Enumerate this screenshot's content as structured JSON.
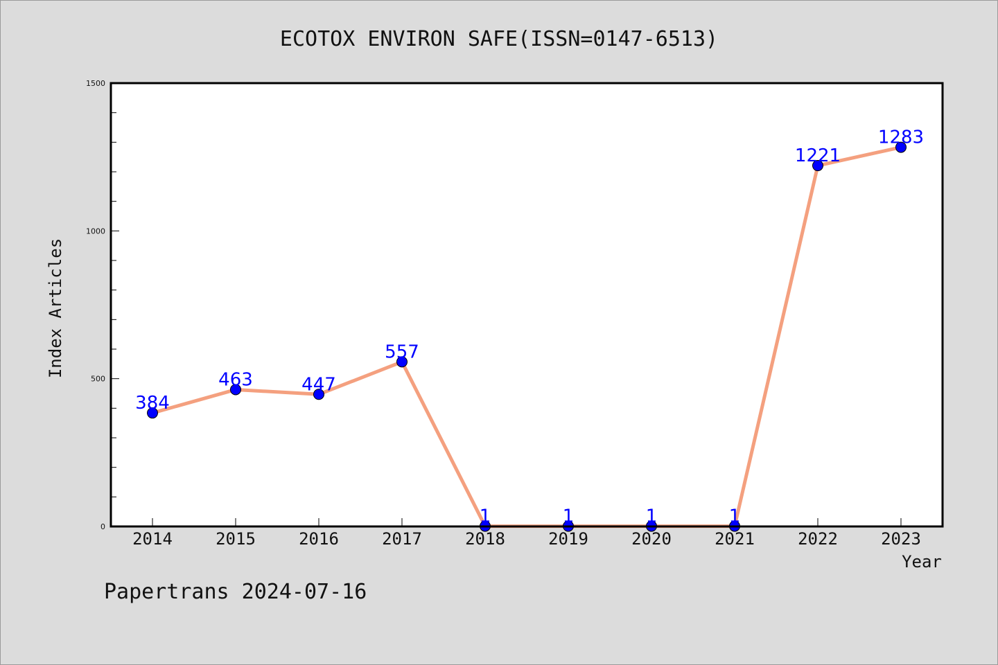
{
  "chart_data": {
    "type": "line",
    "title": "ECOTOX ENVIRON SAFE(ISSN=0147-6513)",
    "xlabel": "Year",
    "ylabel": "Index Articles",
    "categories": [
      "2014",
      "2015",
      "2016",
      "2017",
      "2018",
      "2019",
      "2020",
      "2021",
      "2022",
      "2023"
    ],
    "values": [
      384,
      463,
      447,
      557,
      1,
      1,
      1,
      1,
      1221,
      1283
    ],
    "data_labels": [
      "384",
      "463",
      "447",
      "557",
      "1",
      "1",
      "1",
      "1",
      "1221",
      "1283"
    ],
    "ylim": [
      0,
      1500
    ],
    "yticks": [
      "0",
      "500",
      "1000",
      "1500"
    ],
    "grid": false,
    "line_color": "#f4a07f",
    "marker_color": "#0000ff",
    "label_color": "#0000ff",
    "background": "#dcdcdc"
  },
  "footer": "Papertrans 2024-07-16"
}
